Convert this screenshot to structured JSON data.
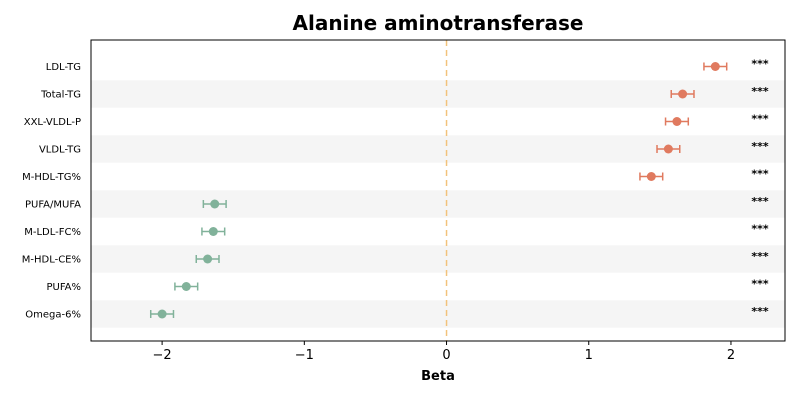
{
  "chart_data": {
    "type": "scatter",
    "title": "Alanine aminotransferase",
    "xlabel": "Beta",
    "ylabel": "",
    "xlim": [
      -2.5,
      2.38
    ],
    "xticks": [
      -2,
      -1,
      0,
      1,
      2
    ],
    "xtick_labels": [
      "−2",
      "−1",
      "0",
      "1",
      "2"
    ],
    "reference_line": 0,
    "grid": false,
    "colors": {
      "positive": "#E07A5F",
      "negative": "#81B29A",
      "reference": "#F2C27B",
      "band": "#F5F5F5"
    },
    "rows": [
      {
        "label": "LDL-TG",
        "beta": 1.89,
        "lo": 1.81,
        "hi": 1.97,
        "sig": "***"
      },
      {
        "label": "Total-TG",
        "beta": 1.66,
        "lo": 1.58,
        "hi": 1.74,
        "sig": "***"
      },
      {
        "label": "XXL-VLDL-P",
        "beta": 1.62,
        "lo": 1.54,
        "hi": 1.7,
        "sig": "***"
      },
      {
        "label": "VLDL-TG",
        "beta": 1.56,
        "lo": 1.48,
        "hi": 1.64,
        "sig": "***"
      },
      {
        "label": "M-HDL-TG%",
        "beta": 1.44,
        "lo": 1.36,
        "hi": 1.52,
        "sig": "***"
      },
      {
        "label": "PUFA/MUFA",
        "beta": -1.63,
        "lo": -1.71,
        "hi": -1.55,
        "sig": "***"
      },
      {
        "label": "M-LDL-FC%",
        "beta": -1.64,
        "lo": -1.72,
        "hi": -1.56,
        "sig": "***"
      },
      {
        "label": "M-HDL-CE%",
        "beta": -1.68,
        "lo": -1.76,
        "hi": -1.6,
        "sig": "***"
      },
      {
        "label": "PUFA%",
        "beta": -1.83,
        "lo": -1.91,
        "hi": -1.75,
        "sig": "***"
      },
      {
        "label": "Omega-6%",
        "beta": -2.0,
        "lo": -2.08,
        "hi": -1.92,
        "sig": "***"
      }
    ]
  }
}
